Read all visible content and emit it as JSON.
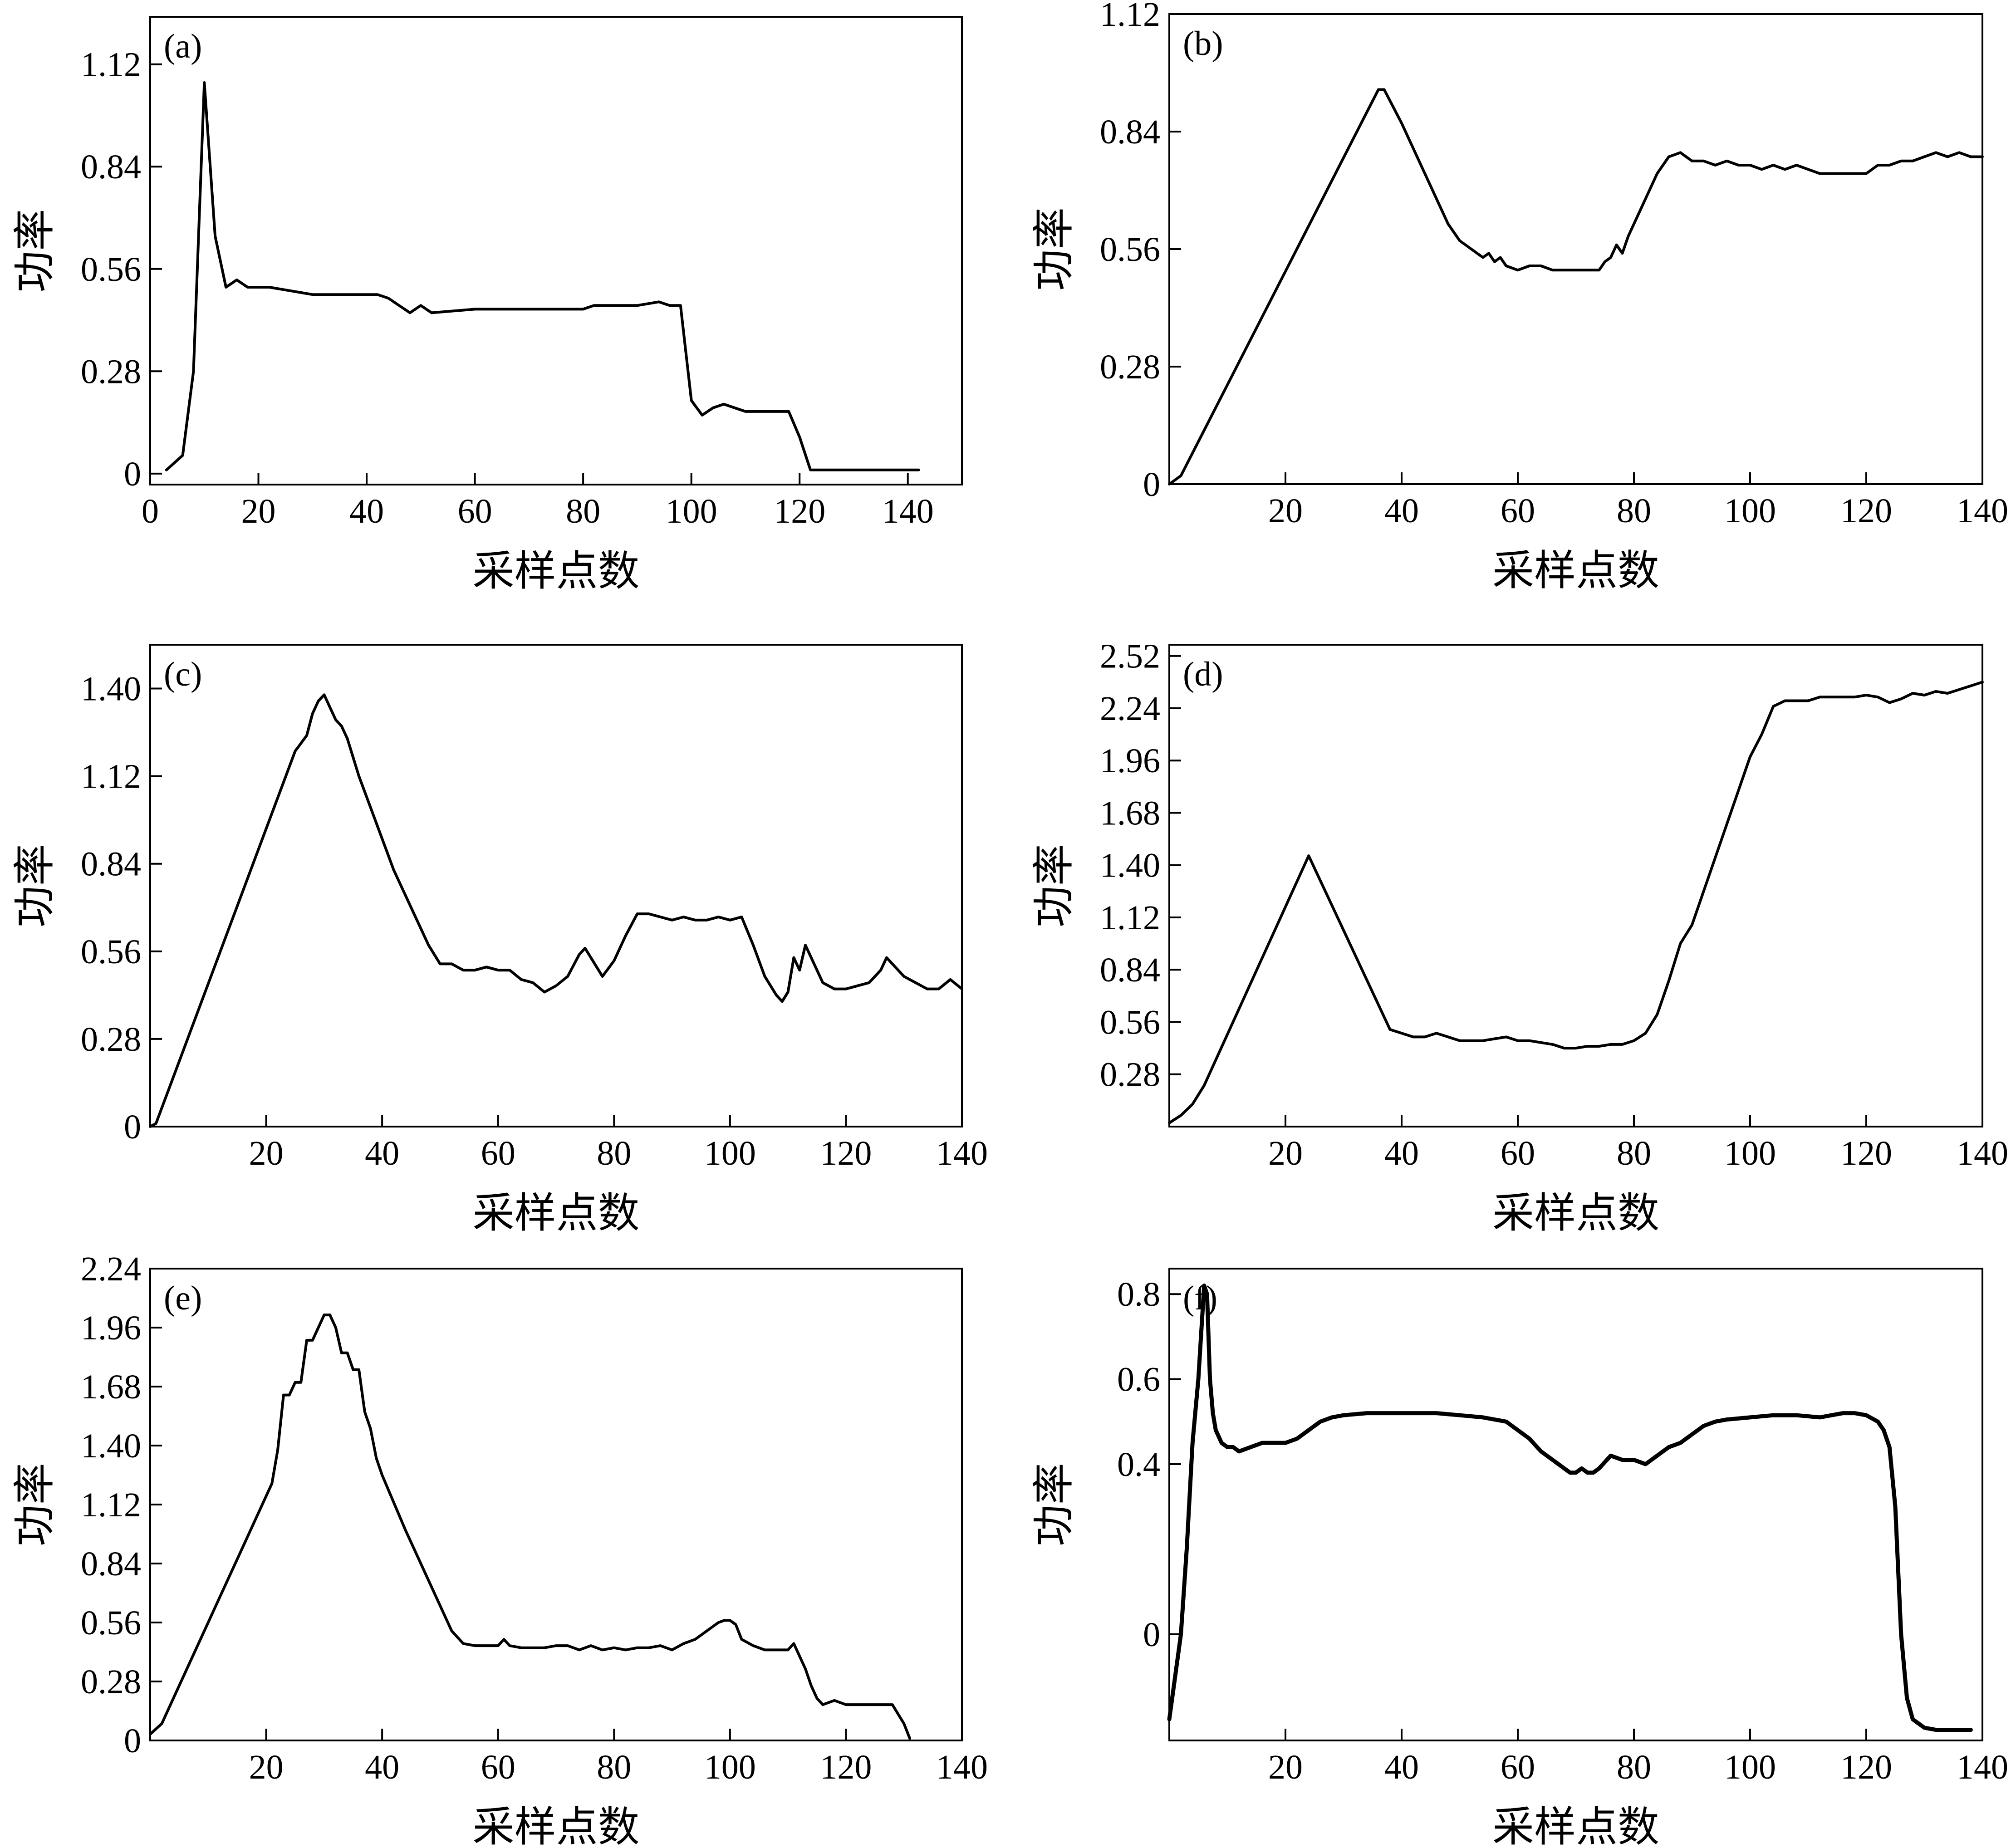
{
  "figure": {
    "background": "#ffffff",
    "line_color": "#000000"
  },
  "chart_data": [
    {
      "id": "a",
      "type": "line",
      "panel_label": "(a)",
      "xlabel": "采样点数",
      "ylabel": "功率",
      "xlim": [
        0,
        150
      ],
      "ylim": [
        -0.03,
        1.25
      ],
      "xticks": [
        0,
        20,
        40,
        60,
        80,
        100,
        120,
        140
      ],
      "yticks": [
        0,
        0.28,
        0.56,
        0.84,
        1.12
      ],
      "ytick_labels": [
        "0",
        "0.28",
        "0.56",
        "0.84",
        "1.12"
      ],
      "series": [
        {
          "x": [
            3,
            6,
            8,
            10,
            12,
            14,
            16,
            18,
            22,
            26,
            30,
            42,
            44,
            46,
            48,
            50,
            52,
            60,
            70,
            80,
            82,
            84,
            86,
            90,
            94,
            96,
            98,
            100,
            102,
            104,
            106,
            108,
            110,
            114,
            118,
            120,
            122,
            130,
            140,
            142
          ],
          "y": [
            0.01,
            0.05,
            0.28,
            1.07,
            0.65,
            0.51,
            0.53,
            0.51,
            0.51,
            0.5,
            0.49,
            0.49,
            0.48,
            0.46,
            0.44,
            0.46,
            0.44,
            0.45,
            0.45,
            0.45,
            0.46,
            0.46,
            0.46,
            0.46,
            0.47,
            0.46,
            0.46,
            0.2,
            0.16,
            0.18,
            0.19,
            0.18,
            0.17,
            0.17,
            0.17,
            0.1,
            0.01,
            0.01,
            0.01,
            0.01
          ]
        }
      ]
    },
    {
      "id": "b",
      "type": "line",
      "panel_label": "(b)",
      "xlabel": "采样点数",
      "ylabel": "功率",
      "xlim": [
        0,
        140
      ],
      "ylim": [
        0,
        1.12
      ],
      "xticks": [
        20,
        40,
        60,
        80,
        100,
        120,
        140
      ],
      "yticks": [
        0,
        0.28,
        0.56,
        0.84,
        1.12
      ],
      "ytick_labels": [
        "0",
        "0.28",
        "0.56",
        "0.84",
        "1.12"
      ],
      "series": [
        {
          "x": [
            0,
            1,
            2,
            36,
            37,
            40,
            44,
            48,
            50,
            52,
            54,
            55,
            56,
            57,
            58,
            60,
            62,
            64,
            66,
            70,
            74,
            75,
            76,
            77,
            78,
            79,
            80,
            82,
            84,
            86,
            88,
            90,
            92,
            94,
            96,
            98,
            100,
            102,
            104,
            106,
            108,
            110,
            112,
            114,
            116,
            120,
            122,
            124,
            126,
            128,
            130,
            132,
            134,
            136,
            138,
            140
          ],
          "y": [
            0,
            0.01,
            0.02,
            0.94,
            0.94,
            0.86,
            0.74,
            0.62,
            0.58,
            0.56,
            0.54,
            0.55,
            0.53,
            0.54,
            0.52,
            0.51,
            0.52,
            0.52,
            0.51,
            0.51,
            0.51,
            0.53,
            0.54,
            0.57,
            0.55,
            0.59,
            0.62,
            0.68,
            0.74,
            0.78,
            0.79,
            0.77,
            0.77,
            0.76,
            0.77,
            0.76,
            0.76,
            0.75,
            0.76,
            0.75,
            0.76,
            0.75,
            0.74,
            0.74,
            0.74,
            0.74,
            0.76,
            0.76,
            0.77,
            0.77,
            0.78,
            0.79,
            0.78,
            0.79,
            0.78,
            0.78
          ]
        }
      ]
    },
    {
      "id": "c",
      "type": "line",
      "panel_label": "(c)",
      "xlabel": "采样点数",
      "ylabel": "功率",
      "xlim": [
        0,
        140
      ],
      "ylim": [
        0,
        1.54
      ],
      "xticks": [
        20,
        40,
        60,
        80,
        100,
        120,
        140
      ],
      "yticks": [
        0,
        0.28,
        0.56,
        0.84,
        1.12,
        1.4
      ],
      "ytick_labels": [
        "0",
        "0.28",
        "0.56",
        "0.84",
        "1.12",
        "1.40"
      ],
      "series": [
        {
          "x": [
            0,
            1,
            25,
            27,
            28,
            29,
            30,
            31,
            32,
            33,
            34,
            36,
            38,
            42,
            48,
            50,
            52,
            54,
            56,
            58,
            60,
            62,
            64,
            66,
            68,
            70,
            72,
            74,
            75,
            76,
            78,
            80,
            82,
            84,
            86,
            88,
            90,
            92,
            94,
            96,
            98,
            100,
            102,
            104,
            106,
            108,
            109,
            110,
            111,
            112,
            113,
            114,
            116,
            118,
            120,
            122,
            124,
            126,
            127,
            128,
            130,
            132,
            134,
            136,
            138,
            140
          ],
          "y": [
            0,
            0.01,
            1.2,
            1.25,
            1.32,
            1.36,
            1.38,
            1.34,
            1.3,
            1.28,
            1.24,
            1.12,
            1.02,
            0.82,
            0.58,
            0.52,
            0.52,
            0.5,
            0.5,
            0.51,
            0.5,
            0.5,
            0.47,
            0.46,
            0.43,
            0.45,
            0.48,
            0.55,
            0.57,
            0.54,
            0.48,
            0.53,
            0.61,
            0.68,
            0.68,
            0.67,
            0.66,
            0.67,
            0.66,
            0.66,
            0.67,
            0.66,
            0.67,
            0.58,
            0.48,
            0.42,
            0.4,
            0.43,
            0.54,
            0.5,
            0.58,
            0.54,
            0.46,
            0.44,
            0.44,
            0.45,
            0.46,
            0.5,
            0.54,
            0.52,
            0.48,
            0.46,
            0.44,
            0.44,
            0.47,
            0.44
          ]
        }
      ]
    },
    {
      "id": "d",
      "type": "line",
      "panel_label": "(d)",
      "xlabel": "采样点数",
      "ylabel": "功率",
      "xlim": [
        0,
        140
      ],
      "ylim": [
        0,
        2.58
      ],
      "xticks": [
        20,
        40,
        60,
        80,
        100,
        120,
        140
      ],
      "yticks": [
        0.28,
        0.56,
        0.84,
        1.12,
        1.4,
        1.68,
        1.96,
        2.24,
        2.52
      ],
      "ytick_labels": [
        "0.28",
        "0.56",
        "0.84",
        "1.12",
        "1.40",
        "1.68",
        "1.96",
        "2.24",
        "2.52"
      ],
      "series": [
        {
          "x": [
            0,
            2,
            4,
            6,
            24,
            38,
            40,
            42,
            44,
            46,
            48,
            50,
            52,
            54,
            56,
            58,
            60,
            62,
            64,
            66,
            68,
            70,
            72,
            74,
            76,
            78,
            80,
            82,
            84,
            86,
            88,
            90,
            92,
            94,
            96,
            98,
            100,
            102,
            104,
            106,
            108,
            110,
            112,
            114,
            116,
            118,
            120,
            122,
            124,
            126,
            128,
            130,
            132,
            134,
            136,
            138,
            140
          ],
          "y": [
            0.02,
            0.06,
            0.12,
            0.22,
            1.45,
            0.52,
            0.5,
            0.48,
            0.48,
            0.5,
            0.48,
            0.46,
            0.46,
            0.46,
            0.47,
            0.48,
            0.46,
            0.46,
            0.45,
            0.44,
            0.42,
            0.42,
            0.43,
            0.43,
            0.44,
            0.44,
            0.46,
            0.5,
            0.6,
            0.78,
            0.98,
            1.08,
            1.26,
            1.44,
            1.62,
            1.8,
            1.98,
            2.1,
            2.25,
            2.28,
            2.28,
            2.28,
            2.3,
            2.3,
            2.3,
            2.3,
            2.31,
            2.3,
            2.27,
            2.29,
            2.32,
            2.31,
            2.33,
            2.32,
            2.34,
            2.36,
            2.38
          ]
        }
      ]
    },
    {
      "id": "e",
      "type": "line",
      "panel_label": "(e)",
      "xlabel": "采样点数",
      "ylabel": "功率",
      "xlim": [
        0,
        140
      ],
      "ylim": [
        0,
        2.24
      ],
      "xticks": [
        20,
        40,
        60,
        80,
        100,
        120,
        140
      ],
      "yticks": [
        0,
        0.28,
        0.56,
        0.84,
        1.12,
        1.4,
        1.68,
        1.96,
        2.24
      ],
      "ytick_labels": [
        "0",
        "0.28",
        "0.56",
        "0.84",
        "1.12",
        "1.40",
        "1.68",
        "1.96",
        "2.24"
      ],
      "series": [
        {
          "x": [
            0,
            2,
            4,
            6,
            8,
            10,
            12,
            14,
            16,
            18,
            20,
            21,
            22,
            23,
            24,
            25,
            26,
            27,
            28,
            29,
            30,
            31,
            32,
            33,
            34,
            35,
            36,
            37,
            38,
            39,
            40,
            44,
            48,
            52,
            54,
            56,
            58,
            60,
            61,
            62,
            64,
            66,
            68,
            70,
            72,
            74,
            76,
            78,
            80,
            82,
            84,
            86,
            88,
            90,
            92,
            94,
            96,
            98,
            99,
            100,
            101,
            102,
            104,
            106,
            108,
            110,
            111,
            112,
            113,
            114,
            115,
            116,
            118,
            120,
            122,
            124,
            126,
            128,
            130,
            131
          ],
          "y": [
            0.03,
            0.08,
            0.2,
            0.32,
            0.44,
            0.56,
            0.68,
            0.8,
            0.92,
            1.04,
            1.16,
            1.22,
            1.38,
            1.64,
            1.64,
            1.7,
            1.7,
            1.9,
            1.9,
            1.96,
            2.02,
            2.02,
            1.96,
            1.84,
            1.84,
            1.76,
            1.76,
            1.56,
            1.48,
            1.34,
            1.26,
            1.0,
            0.76,
            0.52,
            0.46,
            0.45,
            0.45,
            0.45,
            0.48,
            0.45,
            0.44,
            0.44,
            0.44,
            0.45,
            0.45,
            0.43,
            0.45,
            0.43,
            0.44,
            0.43,
            0.44,
            0.44,
            0.45,
            0.43,
            0.46,
            0.48,
            0.52,
            0.56,
            0.57,
            0.57,
            0.55,
            0.48,
            0.45,
            0.43,
            0.43,
            0.43,
            0.46,
            0.4,
            0.34,
            0.26,
            0.2,
            0.17,
            0.19,
            0.17,
            0.17,
            0.17,
            0.17,
            0.17,
            0.08,
            0.01
          ]
        }
      ]
    },
    {
      "id": "f",
      "type": "line",
      "panel_label": "(f)",
      "xlabel": "采样点数",
      "ylabel": "功率",
      "xlim": [
        0,
        140
      ],
      "ylim": [
        -0.25,
        0.86
      ],
      "xticks": [
        20,
        40,
        60,
        80,
        100,
        120,
        140
      ],
      "yticks": [
        0,
        0.4,
        0.6,
        0.8
      ],
      "ytick_labels": [
        "0",
        "0.4",
        "0.6",
        "0.8"
      ],
      "series": [
        {
          "x": [
            0,
            1,
            2,
            3,
            4,
            5,
            6,
            6.5,
            7,
            7.5,
            8,
            9,
            10,
            11,
            12,
            14,
            16,
            18,
            20,
            22,
            24,
            26,
            28,
            30,
            34,
            38,
            42,
            46,
            50,
            54,
            58,
            60,
            62,
            64,
            66,
            68,
            69,
            70,
            71,
            72,
            73,
            74,
            76,
            78,
            80,
            82,
            84,
            86,
            88,
            90,
            92,
            94,
            96,
            100,
            104,
            108,
            112,
            116,
            118,
            120,
            122,
            123,
            124,
            125,
            126,
            127,
            128,
            130,
            132,
            134,
            136,
            138
          ],
          "y": [
            -0.2,
            -0.1,
            0.0,
            0.2,
            0.45,
            0.6,
            0.82,
            0.8,
            0.6,
            0.52,
            0.48,
            0.45,
            0.44,
            0.44,
            0.43,
            0.44,
            0.45,
            0.45,
            0.45,
            0.46,
            0.48,
            0.5,
            0.51,
            0.515,
            0.52,
            0.52,
            0.52,
            0.52,
            0.515,
            0.51,
            0.5,
            0.48,
            0.46,
            0.43,
            0.41,
            0.39,
            0.38,
            0.38,
            0.39,
            0.38,
            0.38,
            0.39,
            0.42,
            0.41,
            0.41,
            0.4,
            0.42,
            0.44,
            0.45,
            0.47,
            0.49,
            0.5,
            0.505,
            0.51,
            0.515,
            0.515,
            0.51,
            0.52,
            0.52,
            0.515,
            0.5,
            0.48,
            0.44,
            0.3,
            0.0,
            -0.15,
            -0.2,
            -0.22,
            -0.225,
            -0.225,
            -0.225,
            -0.225
          ]
        }
      ]
    }
  ]
}
